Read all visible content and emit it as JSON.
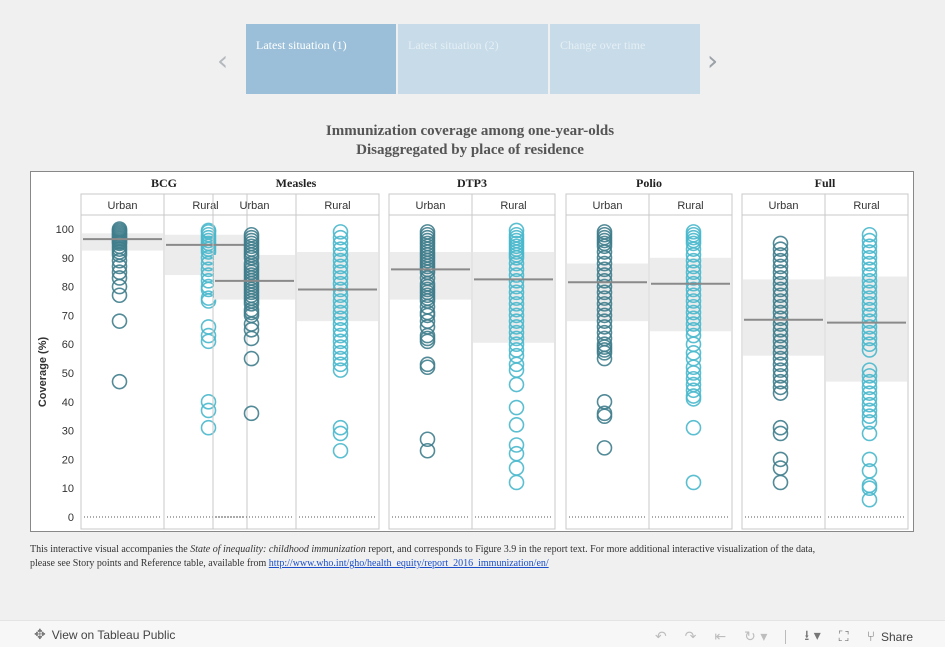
{
  "story": {
    "points": [
      {
        "label": "Latest situation (1)",
        "active": true
      },
      {
        "label": "Latest situation (2)",
        "active": false
      },
      {
        "label": "Change over time",
        "active": false
      }
    ]
  },
  "footnote": {
    "text_before": "This interactive visual accompanies the ",
    "report_title": "State of inequality: childhood immunization",
    "text_after": " report, and corresponds to Figure 3.9 in the report text. For more additional interactive visualization of the data, please see Story points and Reference table, available from ",
    "link": "http://www.who.int/gho/health_equity/report_2016_immunization/en/"
  },
  "toolbar": {
    "view_label": "View on Tableau Public",
    "share_label": "Share"
  },
  "colors": {
    "urban": "#3f7d8c",
    "rural": "#49b8cc",
    "iqr_band": "#ececec",
    "median": "#8a8a8a"
  },
  "chart_data": {
    "type": "scatter",
    "title": "Immunization coverage among one-year-olds",
    "subtitle": "Disaggregated by place of residence",
    "ylabel": "Coverage (%)",
    "ylim": [
      0,
      100
    ],
    "yticks": [
      0,
      10,
      20,
      30,
      40,
      50,
      60,
      70,
      80,
      90,
      100
    ],
    "subcategories": [
      "Urban",
      "Rural"
    ],
    "panels": [
      {
        "name": "BCG",
        "groups": [
          {
            "name": "Urban",
            "median": 96.5,
            "q1": 92.5,
            "q3": 98.5,
            "values": [
              100,
              99.5,
              99,
              98.5,
              98,
              97.5,
              97,
              96.5,
              96,
              95.5,
              95,
              94,
              93,
              92,
              91,
              89,
              87,
              85,
              83,
              80,
              77,
              68,
              47
            ]
          },
          {
            "name": "Rural",
            "median": 94.5,
            "q1": 84,
            "q3": 98,
            "values": [
              99.5,
              99,
              98,
              97,
              96,
              95,
              94,
              93,
              92,
              90,
              88,
              86,
              84,
              82,
              80,
              79,
              76,
              75,
              66,
              63,
              61,
              40,
              37,
              31
            ]
          }
        ]
      },
      {
        "name": "Measles",
        "groups": [
          {
            "name": "Urban",
            "median": 82,
            "q1": 75.5,
            "q3": 91,
            "values": [
              98,
              97,
              96,
              95,
              94,
              93,
              92,
              91,
              90,
              88,
              87,
              86,
              85,
              84,
              83,
              82,
              81,
              80,
              79,
              78,
              77,
              76,
              75,
              74,
              72,
              71,
              70,
              67,
              65,
              62,
              55,
              36
            ]
          },
          {
            "name": "Rural",
            "median": 79,
            "q1": 68,
            "q3": 92,
            "values": [
              99,
              97,
              95,
              93,
              91,
              89,
              87,
              85,
              83,
              81,
              79,
              77,
              75,
              73,
              71,
              69,
              67,
              65,
              63,
              61,
              59,
              57,
              55,
              53,
              51,
              31,
              29,
              23
            ]
          }
        ]
      },
      {
        "name": "DTP3",
        "groups": [
          {
            "name": "Urban",
            "median": 86,
            "q1": 75.5,
            "q3": 92,
            "values": [
              99,
              98,
              97,
              96,
              95,
              94,
              93,
              92,
              91,
              90,
              89,
              88,
              87,
              86,
              85,
              83,
              81,
              80,
              79,
              78,
              77,
              76,
              75,
              73,
              71,
              70,
              68,
              66,
              63,
              62,
              61,
              53,
              52,
              27,
              23
            ]
          },
          {
            "name": "Rural",
            "median": 82.5,
            "q1": 60.5,
            "q3": 92,
            "values": [
              99.5,
              98,
              97,
              96,
              95,
              94,
              93,
              92,
              91,
              90,
              88,
              86,
              84,
              82,
              80,
              78,
              76,
              74,
              72,
              70,
              68,
              66,
              64,
              62,
              60,
              58,
              56,
              53,
              51,
              46,
              38,
              32,
              25,
              22,
              17,
              12
            ]
          }
        ]
      },
      {
        "name": "Polio",
        "groups": [
          {
            "name": "Urban",
            "median": 81.5,
            "q1": 68,
            "q3": 88,
            "values": [
              99,
              98,
              97,
              96,
              95,
              94,
              92,
              90,
              88,
              86,
              84,
              82,
              80,
              78,
              76,
              74,
              72,
              70,
              68,
              66,
              64,
              62,
              60,
              59,
              58,
              57,
              55,
              40,
              36,
              35,
              24
            ]
          },
          {
            "name": "Rural",
            "median": 81,
            "q1": 64.5,
            "q3": 90,
            "values": [
              99,
              98,
              97,
              96,
              95,
              93,
              91,
              89,
              87,
              85,
              83,
              81,
              79,
              77,
              75,
              73,
              71,
              69,
              67,
              65,
              63,
              60,
              57,
              55,
              52,
              50,
              48,
              46,
              44,
              42,
              41,
              31,
              12
            ]
          }
        ]
      },
      {
        "name": "Full",
        "groups": [
          {
            "name": "Urban",
            "median": 68.5,
            "q1": 56,
            "q3": 82.5,
            "values": [
              95,
              93,
              91,
              89,
              87,
              85,
              83,
              81,
              79,
              77,
              75,
              73,
              71,
              69,
              67,
              65,
              63,
              61,
              59,
              57,
              55,
              53,
              51,
              49,
              47,
              45,
              43,
              31,
              29,
              20,
              17,
              12
            ]
          },
          {
            "name": "Rural",
            "median": 67.5,
            "q1": 47,
            "q3": 83.5,
            "values": [
              98,
              96,
              94,
              92,
              90,
              88,
              86,
              84,
              82,
              80,
              78,
              76,
              74,
              72,
              70,
              68,
              66,
              64,
              62,
              60,
              58,
              51,
              49,
              47,
              45,
              43,
              41,
              39,
              37,
              35,
              33,
              29,
              20,
              16,
              11,
              10,
              6
            ]
          }
        ]
      }
    ]
  }
}
